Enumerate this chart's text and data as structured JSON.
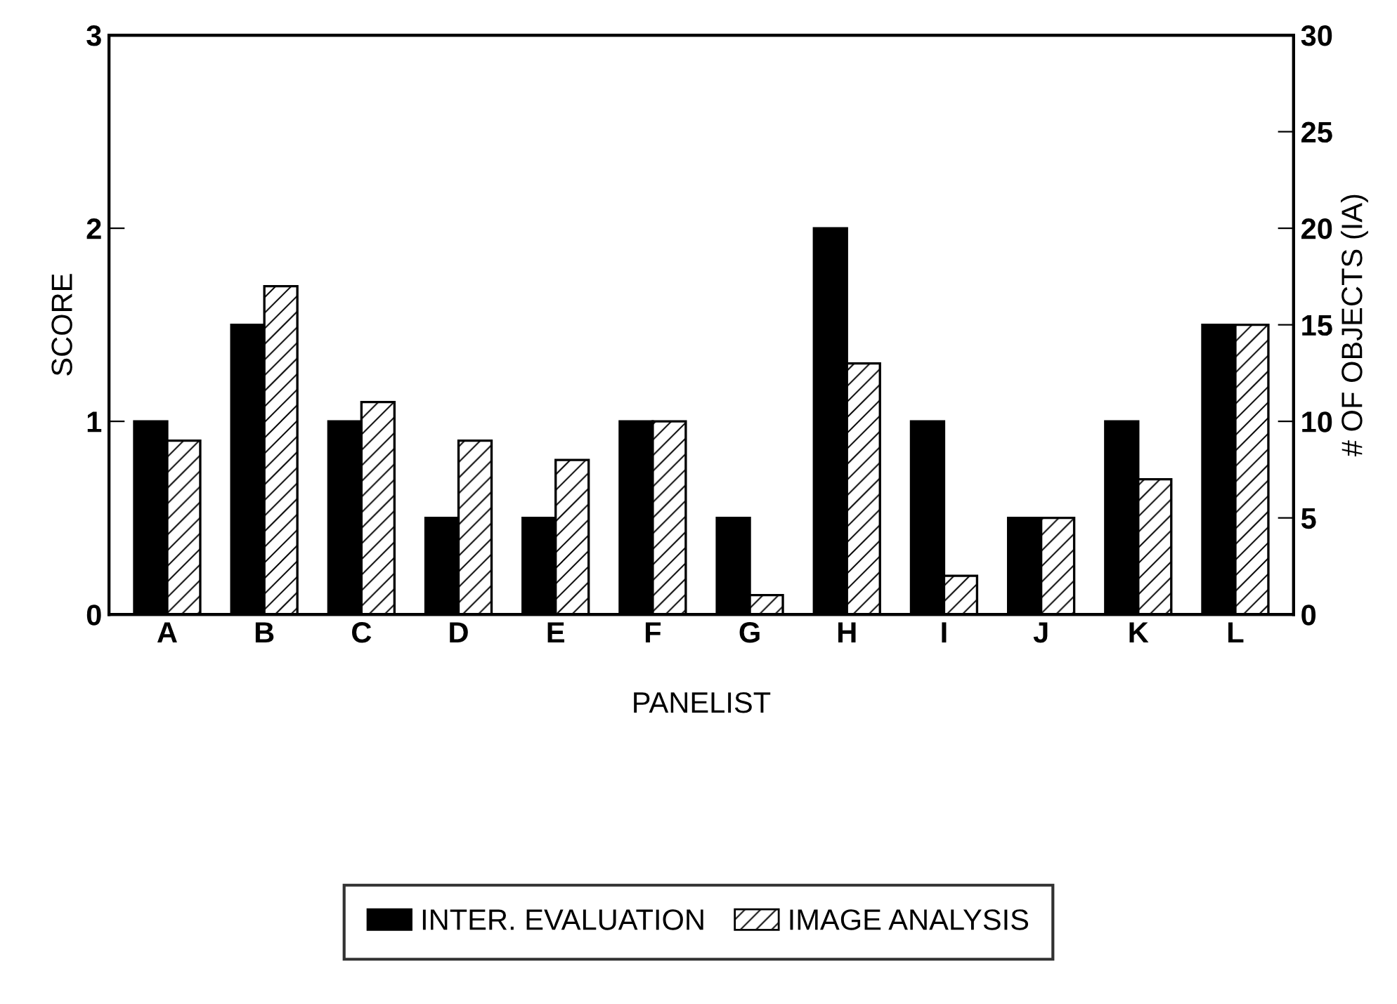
{
  "chart_data": {
    "type": "bar",
    "xlabel": "PANELIST",
    "ylabel": "SCORE",
    "y2label": "# OF OBJECTS (IA)",
    "categories": [
      "A",
      "B",
      "C",
      "D",
      "E",
      "F",
      "G",
      "H",
      "I",
      "J",
      "K",
      "L"
    ],
    "series": [
      {
        "name": "INTER. EVALUATION",
        "color": "#000000",
        "values": [
          1,
          1.5,
          1,
          0.5,
          0.5,
          1,
          0.5,
          2,
          1,
          0.5,
          1,
          1.5
        ]
      },
      {
        "name": "IMAGE ANALYSIS",
        "color": "#000000",
        "axis": "y2",
        "values": [
          9,
          17,
          11,
          9,
          8,
          10,
          1,
          13,
          2,
          5,
          7,
          15
        ]
      }
    ],
    "ylim": [
      0,
      3
    ],
    "yticks": [
      0,
      1,
      2,
      3
    ],
    "y2lim": [
      0,
      30
    ],
    "y2ticks": [
      0,
      5,
      10,
      15,
      20,
      25,
      30
    ],
    "grid": false,
    "legend": "bottom"
  }
}
